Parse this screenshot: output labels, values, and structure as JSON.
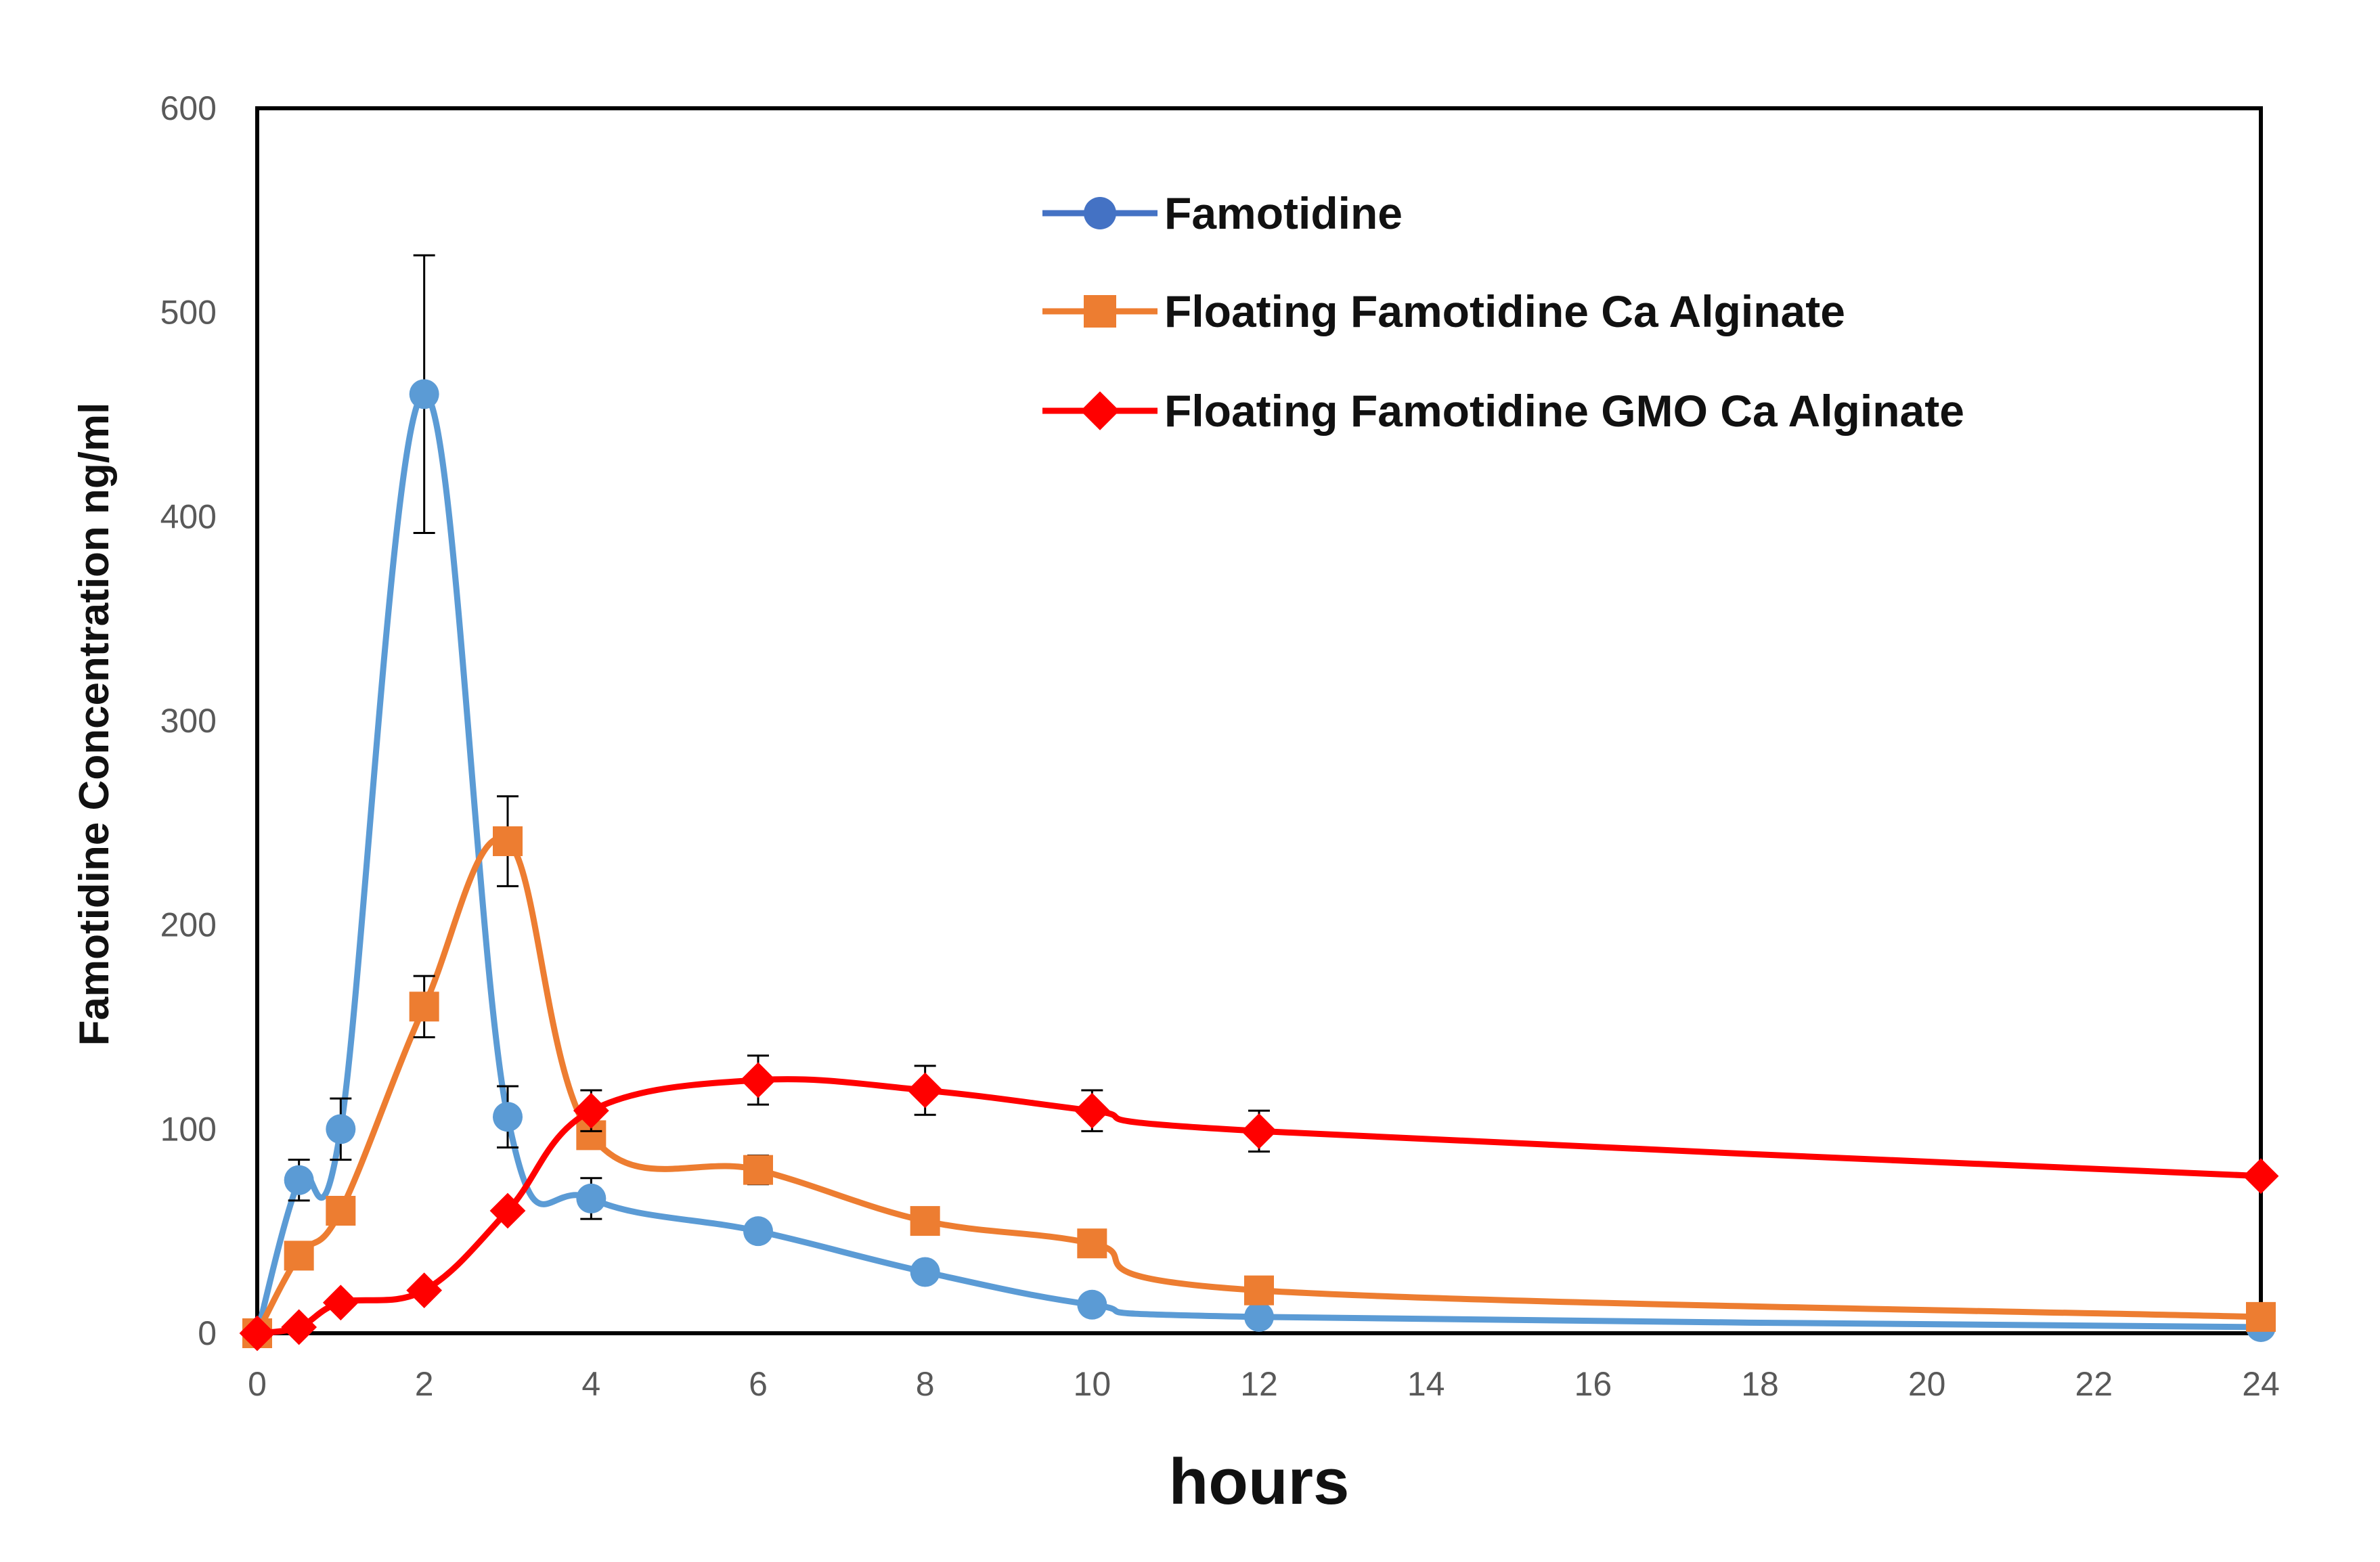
{
  "chart_data": {
    "type": "line",
    "title": "",
    "xlabel": "hours",
    "ylabel": "Famotidine Concentration ng/ml",
    "xlim": [
      0,
      24
    ],
    "ylim": [
      0,
      600
    ],
    "x_ticks": [
      0,
      2,
      4,
      6,
      8,
      10,
      12,
      14,
      16,
      18,
      20,
      22,
      24
    ],
    "y_ticks": [
      0,
      100,
      200,
      300,
      400,
      500,
      600
    ],
    "grid": false,
    "legend_position": "top-right",
    "series": [
      {
        "name": "Famotidine",
        "color": "#5B9BD5",
        "legend_color": "#4472C4",
        "marker": "circle",
        "points": [
          {
            "x": 0,
            "y": 0
          },
          {
            "x": 0.5,
            "y": 75,
            "err": 10
          },
          {
            "x": 1,
            "y": 100,
            "err": 15
          },
          {
            "x": 2,
            "y": 460,
            "err": 68
          },
          {
            "x": 3,
            "y": 106,
            "err": 15
          },
          {
            "x": 4,
            "y": 66,
            "err": 10
          },
          {
            "x": 6,
            "y": 50
          },
          {
            "x": 8,
            "y": 30
          },
          {
            "x": 10,
            "y": 14
          },
          {
            "x": 12,
            "y": 8
          },
          {
            "x": 24,
            "y": 3
          }
        ]
      },
      {
        "name": "Floating Famotidine Ca Alginate",
        "color": "#ED7D31",
        "legend_color": "#ED7D31",
        "marker": "square",
        "points": [
          {
            "x": 0,
            "y": 0
          },
          {
            "x": 0.5,
            "y": 38
          },
          {
            "x": 1,
            "y": 60
          },
          {
            "x": 2,
            "y": 160,
            "err": 15
          },
          {
            "x": 3,
            "y": 241,
            "err": 22
          },
          {
            "x": 4,
            "y": 97
          },
          {
            "x": 6,
            "y": 80,
            "err": 7
          },
          {
            "x": 8,
            "y": 55
          },
          {
            "x": 10,
            "y": 44
          },
          {
            "x": 12,
            "y": 21
          },
          {
            "x": 24,
            "y": 8
          }
        ]
      },
      {
        "name": "Floating Famotidine GMO Ca Alginate",
        "color": "#FF0000",
        "legend_color": "#FF0000",
        "marker": "diamond",
        "points": [
          {
            "x": 0,
            "y": 0
          },
          {
            "x": 0.5,
            "y": 3
          },
          {
            "x": 1,
            "y": 15
          },
          {
            "x": 2,
            "y": 21
          },
          {
            "x": 3,
            "y": 60
          },
          {
            "x": 4,
            "y": 109,
            "err": 10
          },
          {
            "x": 6,
            "y": 124,
            "err": 12
          },
          {
            "x": 8,
            "y": 119,
            "err": 12
          },
          {
            "x": 10,
            "y": 109,
            "err": 10
          },
          {
            "x": 12,
            "y": 99,
            "err": 10
          },
          {
            "x": 24,
            "y": 77
          }
        ]
      }
    ]
  }
}
